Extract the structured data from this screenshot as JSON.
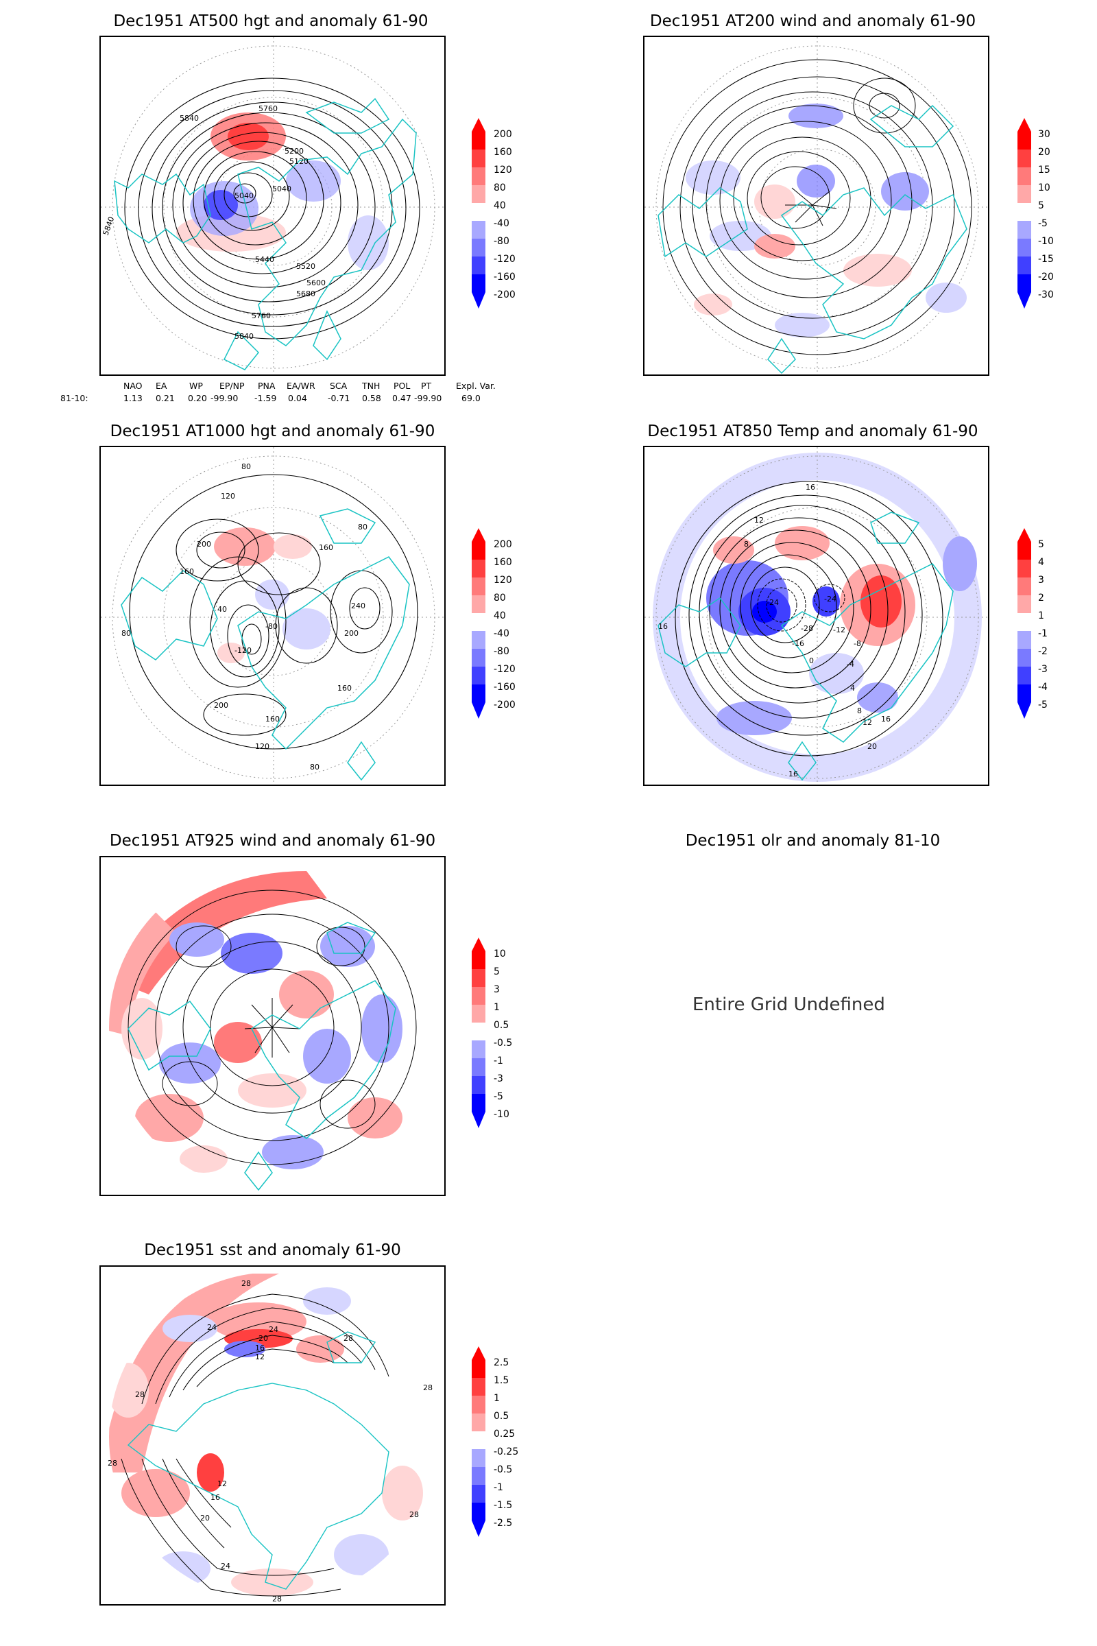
{
  "colors": {
    "coast": "#19c3c3",
    "contour": "#000000",
    "pos_scale": [
      "#ffd6d6",
      "#ffa8a8",
      "#ff7a7a",
      "#ff4040",
      "#ff0000"
    ],
    "neg_scale": [
      "#d6d6ff",
      "#a8a8ff",
      "#7a7aff",
      "#4040ff",
      "#0000ff"
    ]
  },
  "panels": [
    {
      "id": "at500",
      "title": "Dec1951 AT500 hgt and anomaly 61-90",
      "cbar_labels": [
        "200",
        "160",
        "120",
        "80",
        "40",
        "-40",
        "-80",
        "-120",
        "-160",
        "-200"
      ],
      "contour_labels": [
        "5760",
        "5840",
        "5200",
        "5120",
        "5040",
        "5040",
        "5440",
        "5520",
        "5600",
        "5680",
        "5760",
        "5840",
        "5840"
      ]
    },
    {
      "id": "at200",
      "title": "Dec1951 AT200 wind and anomaly 61-90",
      "cbar_labels": [
        "30",
        "20",
        "15",
        "10",
        "5",
        "-5",
        "-10",
        "-15",
        "-20",
        "-30"
      ],
      "contour_labels": []
    },
    {
      "id": "at1000",
      "title": "Dec1951 AT1000 hgt and anomaly 61-90",
      "cbar_labels": [
        "200",
        "160",
        "120",
        "80",
        "40",
        "-40",
        "-80",
        "-120",
        "-160",
        "-200"
      ],
      "contour_labels": [
        "80",
        "120",
        "200",
        "160",
        "80",
        "160",
        "40",
        "-120",
        "-80",
        "240",
        "200",
        "160",
        "200",
        "160",
        "120",
        "80",
        "80"
      ]
    },
    {
      "id": "at850",
      "title": "Dec1951 AT850 Temp and anomaly 61-90",
      "cbar_labels": [
        "5",
        "4",
        "3",
        "2",
        "1",
        "-1",
        "-2",
        "-3",
        "-4",
        "-5"
      ],
      "contour_labels": [
        "16",
        "12",
        "8",
        "-24",
        "-24",
        "-28",
        "-16",
        "-12",
        "-8",
        "-4",
        "0",
        "4",
        "8",
        "12",
        "16",
        "20",
        "16",
        "16"
      ]
    },
    {
      "id": "at925",
      "title": "Dec1951 AT925 wind and anomaly 61-90",
      "cbar_labels": [
        "10",
        "5",
        "3",
        "1",
        "0.5",
        "-0.5",
        "-1",
        "-3",
        "-5",
        "-10"
      ],
      "contour_labels": []
    },
    {
      "id": "olr",
      "title": "Dec1951 olr and anomaly 81-10",
      "message": "Entire Grid Undefined"
    },
    {
      "id": "sst",
      "title": "Dec1951 sst and anomaly 61-90",
      "cbar_labels": [
        "2.5",
        "1.5",
        "1",
        "0.5",
        "0.25",
        "-0.25",
        "-0.5",
        "-1",
        "-1.5",
        "-2.5"
      ],
      "contour_labels": [
        "28",
        "24",
        "28",
        "24",
        "20",
        "16",
        "12",
        "28",
        "28",
        "28",
        "20",
        "16",
        "12",
        "24",
        "28",
        "28"
      ]
    }
  ],
  "index_table": {
    "headers": [
      "NAO",
      "EA",
      "WP",
      "EP/NP",
      "PNA",
      "EA/WR",
      "SCA",
      "TNH",
      "POL",
      "PT",
      "Expl. Var."
    ],
    "row_label": "81-10:",
    "values": [
      "1.13",
      "0.21",
      "0.20",
      "-99.90",
      "-1.59",
      "0.04",
      "-0.71",
      "0.58",
      "0.47",
      "-99.90",
      "69.0"
    ]
  }
}
